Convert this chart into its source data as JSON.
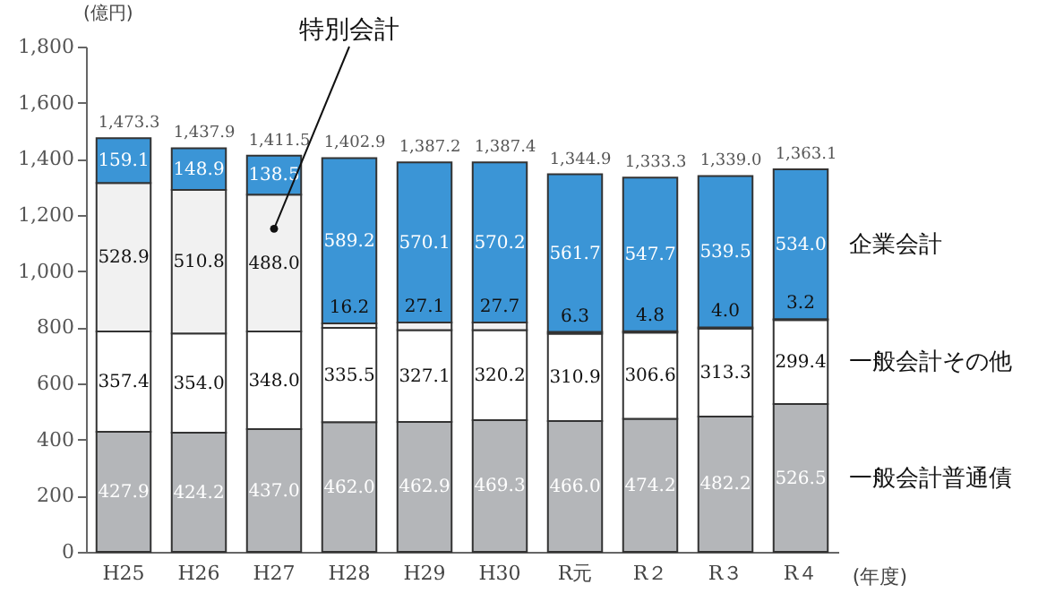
{
  "chart_data": {
    "type": "bar",
    "stacked": true,
    "ylabel": "(億円)",
    "xlabel": "(年度)",
    "categories": [
      "H25",
      "H26",
      "H27",
      "H28",
      "H29",
      "H30",
      "R元",
      "R２",
      "R３",
      "R４"
    ],
    "series": [
      {
        "name": "一般会計普通債",
        "color": "#b4b6b9",
        "values": [
          427.9,
          424.2,
          437.0,
          462.0,
          462.9,
          469.3,
          466.0,
          474.2,
          482.2,
          526.5
        ],
        "value_labels": [
          "427.9",
          "424.2",
          "437.0",
          "462.0",
          "462.9",
          "469.3",
          "466.0",
          "474.2",
          "482.2",
          "526.5"
        ]
      },
      {
        "name": "一般会計その他",
        "color": "#ffffff",
        "values": [
          357.4,
          354.0,
          348.0,
          335.5,
          327.1,
          320.2,
          310.9,
          306.6,
          313.3,
          299.4
        ],
        "value_labels": [
          "357.4",
          "354.0",
          "348.0",
          "335.5",
          "327.1",
          "320.2",
          "310.9",
          "306.6",
          "313.3",
          "299.4"
        ]
      },
      {
        "name": "特別会計",
        "color": "#f1f1f1",
        "values": [
          528.9,
          510.8,
          488.0,
          16.2,
          27.1,
          27.7,
          6.3,
          4.8,
          4.0,
          3.2
        ],
        "value_labels": [
          "528.9",
          "510.8",
          "488.0",
          "16.2",
          "27.1",
          "27.7",
          "6.3",
          "4.8",
          "4.0",
          "3.2"
        ]
      },
      {
        "name": "企業会計",
        "color": "#3b95d6",
        "values": [
          159.1,
          148.9,
          138.5,
          589.2,
          570.1,
          570.2,
          561.7,
          547.7,
          539.5,
          534.0
        ],
        "value_labels": [
          "159.1",
          "148.9",
          "138.5",
          "589.2",
          "570.1",
          "570.2",
          "561.7",
          "547.7",
          "539.5",
          "534.0"
        ]
      }
    ],
    "totals": [
      "1,473.3",
      "1,437.9",
      "1,411.5",
      "1,402.9",
      "1,387.2",
      "1,387.4",
      "1,344.9",
      "1,333.3",
      "1,339.0",
      "1,363.1"
    ],
    "ylim": [
      0,
      1800
    ],
    "yticks": [
      0,
      {
        "value": 200,
        "label": "200"
      },
      {
        "value": 400,
        "label": "400"
      },
      {
        "value": 600,
        "label": "600"
      },
      {
        "value": 800,
        "label": "800"
      },
      {
        "value": 1000,
        "label": "1,000"
      },
      {
        "value": 1200,
        "label": "1,200"
      },
      {
        "value": 1400,
        "label": "1,400"
      },
      {
        "value": 1600,
        "label": "1,600"
      },
      {
        "value": 1800,
        "label": "1,800"
      }
    ],
    "grid": false,
    "legend": false
  }
}
